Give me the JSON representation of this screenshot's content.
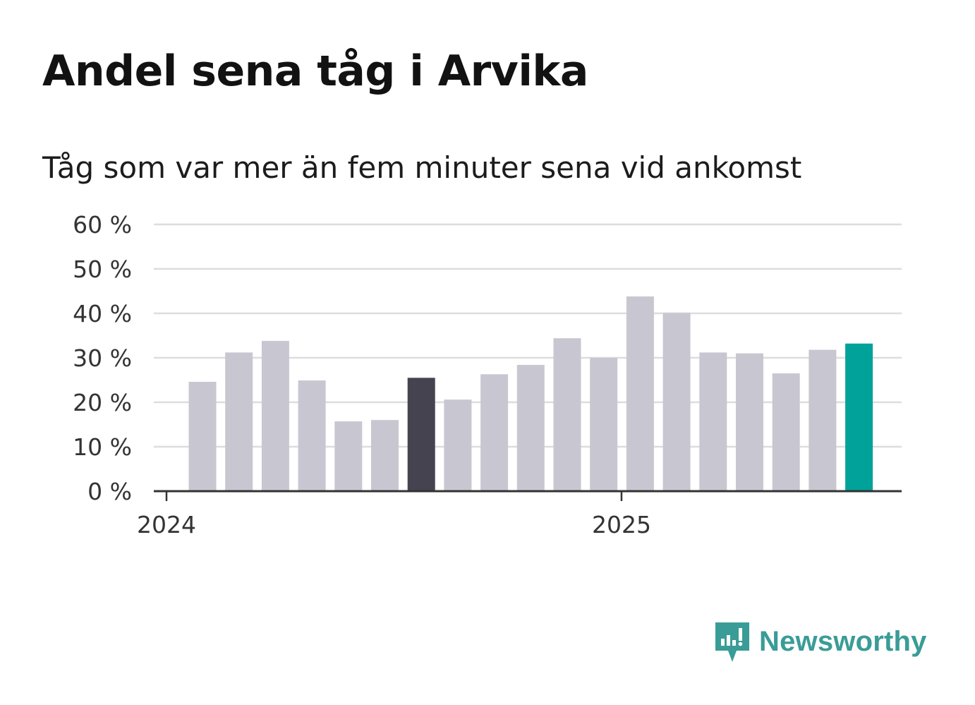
{
  "title": "Andel sena tåg i Arvika",
  "subtitle": "Tåg som var mer än fem minuter sena vid ankomst",
  "brand": {
    "name": "Newsworthy",
    "icon": "newsworthy-logo-icon",
    "color": "#3a9c97"
  },
  "colors": {
    "default": "#c8c7d1",
    "highlight": "#45434f",
    "latest": "#00a29a",
    "grid": "#dddddd",
    "axis": "#333333"
  },
  "chart_data": {
    "type": "bar",
    "categories": [
      "2024-01",
      "2024-02",
      "2024-03",
      "2024-04",
      "2024-05",
      "2024-06",
      "2024-07",
      "2024-08",
      "2024-09",
      "2024-10",
      "2024-11",
      "2024-12",
      "2025-01",
      "2025-02",
      "2025-03",
      "2025-04",
      "2025-05",
      "2025-06",
      "2025-07"
    ],
    "values": [
      24.6,
      31.2,
      33.8,
      24.9,
      15.7,
      16.0,
      25.5,
      20.6,
      26.3,
      28.4,
      34.4,
      30.0,
      43.8,
      40.1,
      31.2,
      31.0,
      26.5,
      31.8,
      33.2
    ],
    "highlight_index": 6,
    "latest_index": 18,
    "ylim": [
      0,
      60
    ],
    "yticks": [
      0,
      10,
      20,
      30,
      40,
      50,
      60
    ],
    "ytick_labels": [
      "0 %",
      "10 %",
      "20 %",
      "30 %",
      "40 %",
      "50 %",
      "60 %"
    ],
    "xticks": [
      {
        "label": "2024",
        "at": "2024-01"
      },
      {
        "label": "2025",
        "at": "2025-01"
      }
    ],
    "grid": true,
    "legend": "none"
  }
}
